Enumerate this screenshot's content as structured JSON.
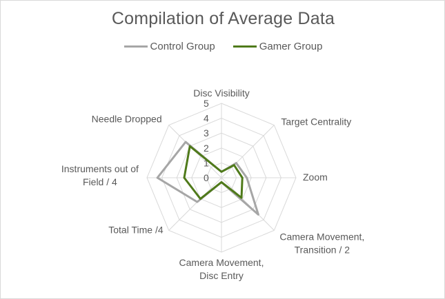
{
  "chart_data": {
    "type": "radar",
    "title": "Compilation of Average Data",
    "axes": [
      [
        "Disc Visibility"
      ],
      [
        "Target Centrality"
      ],
      [
        "Zoom"
      ],
      [
        "Camera Movement,",
        "Transition / 2"
      ],
      [
        "Camera Movement,",
        "Disc Entry"
      ],
      [
        "Total Time /4"
      ],
      [
        "Instruments out of",
        "Field / 4"
      ],
      [
        "Needle Dropped"
      ]
    ],
    "ticks": [
      0,
      1,
      2,
      3,
      4,
      5
    ],
    "range": [
      0,
      5
    ],
    "legend_position": "top",
    "series": [
      {
        "name": "Control Group",
        "color": "#a6a6a6",
        "values": [
          0.4,
          1.4,
          1.7,
          3.5,
          0.3,
          2.3,
          4.3,
          3.4
        ]
      },
      {
        "name": "Gamer Group",
        "color": "#4f7a1a",
        "values": [
          0.4,
          1.2,
          1.4,
          1.9,
          0.3,
          2.0,
          2.5,
          3.0
        ]
      }
    ]
  }
}
